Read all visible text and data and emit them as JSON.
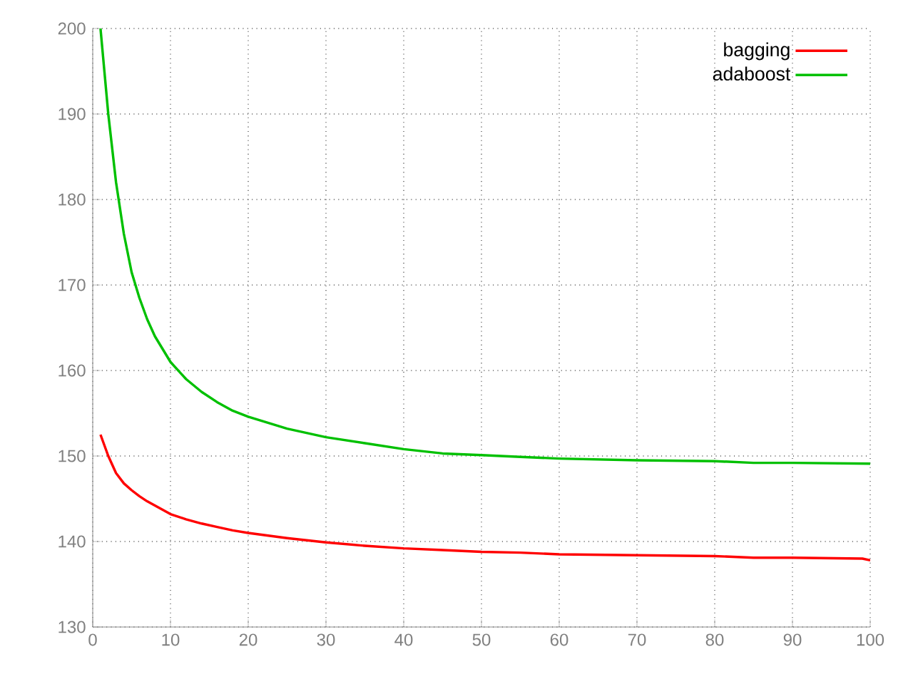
{
  "chart_data": {
    "type": "line",
    "xlim": [
      0,
      100
    ],
    "ylim": [
      130,
      200
    ],
    "xticks": [
      0,
      10,
      20,
      30,
      40,
      50,
      60,
      70,
      80,
      90,
      100
    ],
    "yticks": [
      130,
      140,
      150,
      160,
      170,
      180,
      190,
      200
    ],
    "grid": true,
    "legend": "top right",
    "marker": "none",
    "line_style": "solid",
    "series": [
      {
        "name": "bagging",
        "color": "#ff0000",
        "x": [
          1,
          2,
          3,
          4,
          5,
          6,
          7,
          8,
          9,
          10,
          12,
          14,
          16,
          18,
          20,
          25,
          30,
          35,
          40,
          45,
          50,
          55,
          60,
          70,
          80,
          85,
          90,
          99,
          100
        ],
        "values": [
          152.5,
          150,
          148,
          146.8,
          146,
          145.3,
          144.7,
          144.2,
          143.7,
          143.2,
          142.6,
          142.1,
          141.7,
          141.3,
          141,
          140.4,
          139.9,
          139.5,
          139.2,
          139,
          138.8,
          138.7,
          138.5,
          138.4,
          138.3,
          138.1,
          138.1,
          138,
          137.8
        ]
      },
      {
        "name": "adaboost",
        "color": "#00c000",
        "x": [
          1,
          2,
          3,
          4,
          5,
          6,
          7,
          8,
          9,
          10,
          12,
          14,
          16,
          18,
          20,
          25,
          30,
          35,
          40,
          45,
          50,
          55,
          60,
          70,
          80,
          85,
          90,
          100
        ],
        "values": [
          200,
          190,
          182,
          176,
          171.5,
          168.5,
          166,
          164,
          162.5,
          161,
          159,
          157.5,
          156.3,
          155.3,
          154.6,
          153.2,
          152.2,
          151.5,
          150.8,
          150.3,
          150.1,
          149.9,
          149.7,
          149.5,
          149.4,
          149.2,
          149.2,
          149.1
        ]
      }
    ]
  }
}
